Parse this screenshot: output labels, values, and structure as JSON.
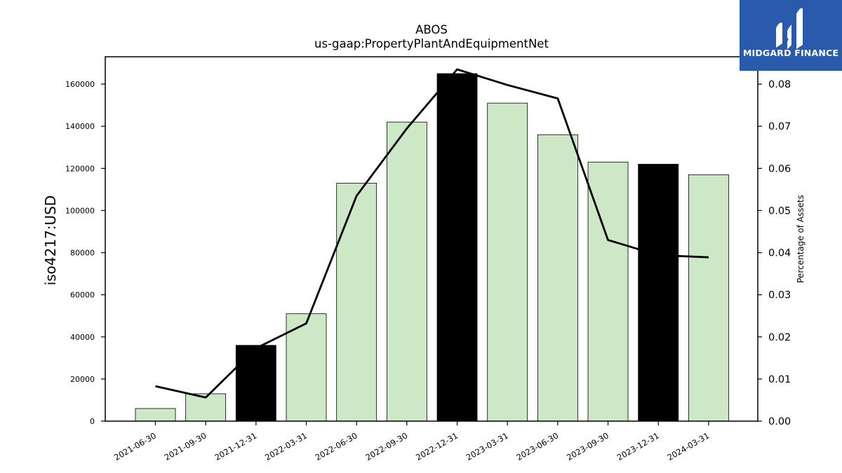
{
  "logo": {
    "text": "MIDGARD FINANCE",
    "icon": "midgard-logo-icon",
    "bg_color": "#2a5aab"
  },
  "chart_data": {
    "type": "bar",
    "title": "ABOS",
    "subtitle": "us-gaap:PropertyPlantAndEquipmentNet",
    "ylabel": "iso4217:USD",
    "y2label": "Percentage of Assets",
    "ylim": [
      0,
      173000
    ],
    "y2lim": [
      0,
      0.0865
    ],
    "yticks": [
      0,
      20000,
      40000,
      60000,
      80000,
      100000,
      120000,
      140000,
      160000
    ],
    "y2ticks": [
      "0.00",
      "0.01",
      "0.02",
      "0.03",
      "0.04",
      "0.05",
      "0.06",
      "0.07",
      "0.08"
    ],
    "categories": [
      "2021-06-30",
      "2021-09-30",
      "2021-12-31",
      "2022-03-31",
      "2022-06-30",
      "2022-09-30",
      "2022-12-31",
      "2023-03-31",
      "2023-06-30",
      "2023-09-30",
      "2023-12-31",
      "2024-03-31"
    ],
    "series": [
      {
        "type": "bar",
        "axis": "left",
        "values": [
          6000,
          13000,
          36000,
          51000,
          113000,
          142000,
          165000,
          151000,
          136000,
          123000,
          122000,
          117000
        ]
      },
      {
        "type": "line",
        "axis": "right",
        "values": [
          0.0083,
          0.0056,
          0.0173,
          0.0232,
          0.0535,
          0.0695,
          0.0835,
          0.0798,
          0.0766,
          0.043,
          0.0394,
          0.0389
        ]
      }
    ],
    "highlighted_categories": [
      "2021-12-31",
      "2022-12-31",
      "2023-12-31"
    ],
    "colors": {
      "bar": "#cce8c6",
      "bar_highlight": "#000000",
      "line": "#000000"
    },
    "grid": false
  }
}
